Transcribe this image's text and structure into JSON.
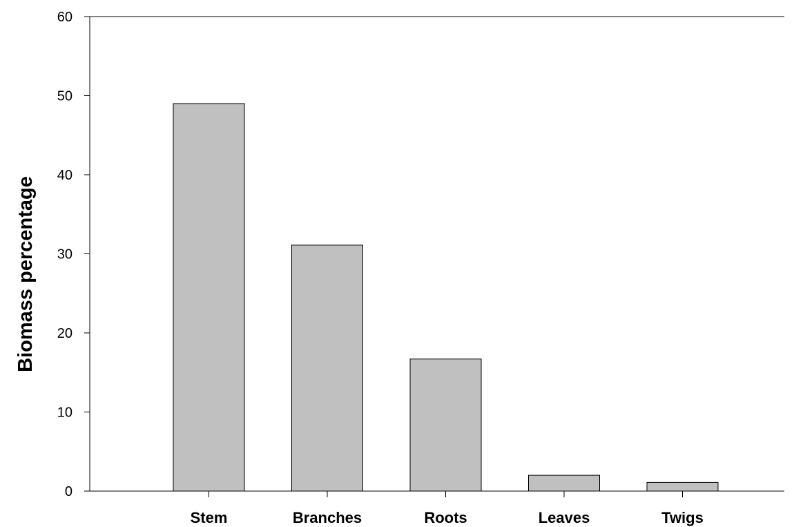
{
  "chart_data": {
    "type": "bar",
    "categories": [
      "Stem",
      "Branches",
      "Roots",
      "Leaves",
      "Twigs"
    ],
    "values": [
      49,
      31.1,
      16.7,
      2.0,
      1.1
    ],
    "title": "",
    "xlabel": "",
    "ylabel": "Biomass percentage",
    "ylim": [
      0,
      60
    ],
    "yticks": [
      0,
      10,
      20,
      30,
      40,
      50,
      60
    ],
    "grid": false,
    "legend": "none",
    "colors": {
      "bar_fill": "#c0c0c0",
      "bar_stroke": "#000000",
      "axis": "#000000"
    }
  }
}
